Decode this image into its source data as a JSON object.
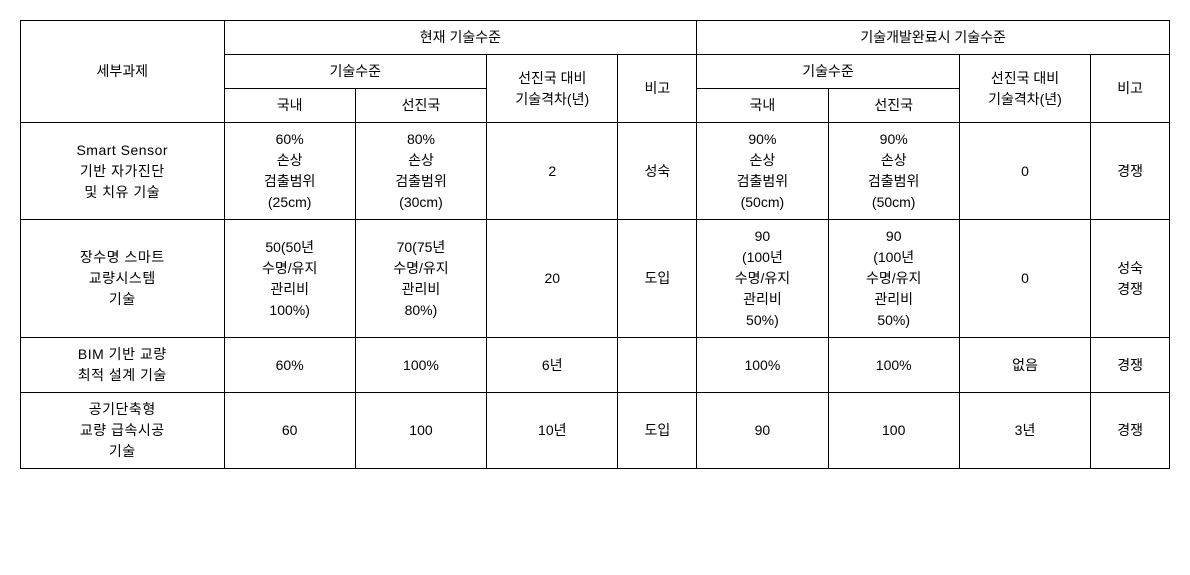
{
  "headers": {
    "task": "세부과제",
    "current_level": "현재 기술수준",
    "future_level": "기술개발완료시 기술수준",
    "tech_level": "기술수준",
    "gap": "선진국 대비\n기술격차(년)",
    "note": "비고",
    "domestic": "국내",
    "advanced": "선진국"
  },
  "rows": [
    {
      "task": "Smart Sensor\n기반 자가진단\n및 치유 기술",
      "cur_domestic": "60%\n손상\n검출범위\n(25cm)",
      "cur_advanced": "80%\n손상\n검출범위\n(30cm)",
      "cur_gap": "2",
      "cur_note": "성숙",
      "fut_domestic": "90%\n손상\n검출범위\n(50cm)",
      "fut_advanced": "90%\n손상\n검출범위\n(50cm)",
      "fut_gap": "0",
      "fut_note": "경쟁"
    },
    {
      "task": "장수명 스마트\n교량시스템\n기술",
      "cur_domestic": "50(50년\n수명/유지\n관리비\n100%)",
      "cur_advanced": "70(75년\n수명/유지\n관리비\n80%)",
      "cur_gap": "20",
      "cur_note": "도입",
      "fut_domestic": "90\n(100년\n수명/유지\n관리비\n50%)",
      "fut_advanced": "90\n(100년\n수명/유지\n관리비\n50%)",
      "fut_gap": "0",
      "fut_note": "성숙\n경쟁"
    },
    {
      "task": "BIM 기반 교량\n최적 설계 기술",
      "cur_domestic": "60%",
      "cur_advanced": "100%",
      "cur_gap": "6년",
      "cur_note": "",
      "fut_domestic": "100%",
      "fut_advanced": "100%",
      "fut_gap": "없음",
      "fut_note": "경쟁"
    },
    {
      "task": "공기단축형\n교량 급속시공\n기술",
      "cur_domestic": "60",
      "cur_advanced": "100",
      "cur_gap": "10년",
      "cur_note": "도입",
      "fut_domestic": "90",
      "fut_advanced": "100",
      "fut_gap": "3년",
      "fut_note": "경쟁"
    }
  ]
}
